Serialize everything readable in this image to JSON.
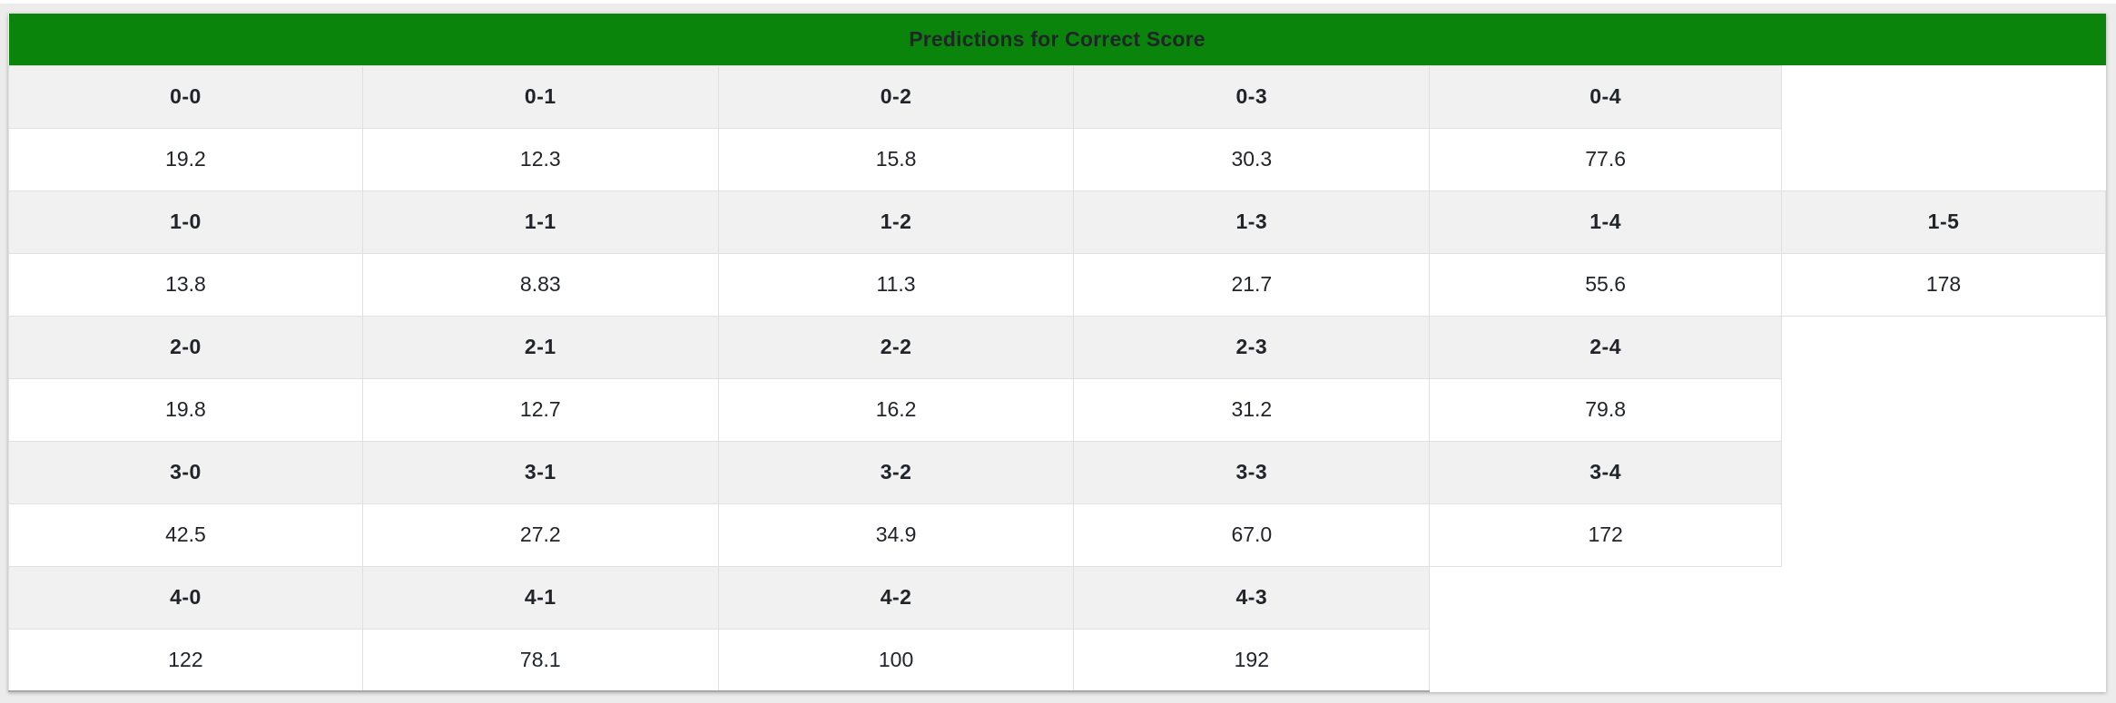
{
  "colors": {
    "page_bg": "#ececec",
    "top_strip": "#ffffff",
    "card_bg": "#ffffff",
    "title_bg": "#0a840b",
    "title_text": "#000000",
    "header_row_bg": "#f1f1f2",
    "value_row_bg": "#ffffff",
    "border": "#e0e0e0",
    "table_bottom_border": "#a9a9a9",
    "text": "#212529"
  },
  "table": {
    "title": "Predictions for Correct Score",
    "groups": [
      {
        "labels": [
          "0-0",
          "0-1",
          "0-2",
          "0-3",
          "0-4"
        ],
        "values": [
          "19.2",
          "12.3",
          "15.8",
          "30.3",
          "77.6"
        ]
      },
      {
        "labels": [
          "1-0",
          "1-1",
          "1-2",
          "1-3",
          "1-4",
          "1-5"
        ],
        "values": [
          "13.8",
          "8.83",
          "11.3",
          "21.7",
          "55.6",
          "178"
        ]
      },
      {
        "labels": [
          "2-0",
          "2-1",
          "2-2",
          "2-3",
          "2-4"
        ],
        "values": [
          "19.8",
          "12.7",
          "16.2",
          "31.2",
          "79.8"
        ]
      },
      {
        "labels": [
          "3-0",
          "3-1",
          "3-2",
          "3-3",
          "3-4"
        ],
        "values": [
          "42.5",
          "27.2",
          "34.9",
          "67.0",
          "172"
        ]
      },
      {
        "labels": [
          "4-0",
          "4-1",
          "4-2",
          "4-3"
        ],
        "values": [
          "122",
          "78.1",
          "100",
          "192"
        ]
      }
    ]
  },
  "chart_data": {
    "type": "table",
    "title": "Predictions for Correct Score",
    "scores": [
      "0-0",
      "0-1",
      "0-2",
      "0-3",
      "0-4",
      "1-0",
      "1-1",
      "1-2",
      "1-3",
      "1-4",
      "1-5",
      "2-0",
      "2-1",
      "2-2",
      "2-3",
      "2-4",
      "3-0",
      "3-1",
      "3-2",
      "3-3",
      "3-4",
      "4-0",
      "4-1",
      "4-2",
      "4-3"
    ],
    "values": [
      19.2,
      12.3,
      15.8,
      30.3,
      77.6,
      13.8,
      8.83,
      11.3,
      21.7,
      55.6,
      178,
      19.8,
      12.7,
      16.2,
      31.2,
      79.8,
      42.5,
      27.2,
      34.9,
      67.0,
      172,
      122,
      78.1,
      100,
      192
    ]
  }
}
